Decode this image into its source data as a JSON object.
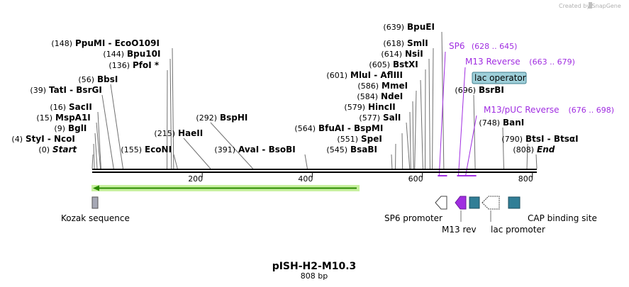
{
  "credit": "Created by SnapGene",
  "map": {
    "title": "pISH-H2-M10.3",
    "length_label": "808 bp",
    "length_bp": 808
  },
  "ruler": {
    "ticks": [
      {
        "bp": 200,
        "label": "200"
      },
      {
        "bp": 400,
        "label": "400"
      },
      {
        "bp": 600,
        "label": "600"
      },
      {
        "bp": 800,
        "label": "800"
      }
    ]
  },
  "sites": [
    {
      "id": "start",
      "pos": "(0)",
      "name": "Start",
      "bp": 0,
      "italic": true
    },
    {
      "id": "styi",
      "pos": "(4)",
      "name": "StyI  - NcoI",
      "bp": 4
    },
    {
      "id": "bgli",
      "pos": "(9)",
      "name": "BglI",
      "bp": 9
    },
    {
      "id": "mspa1i",
      "pos": "(15)",
      "name": "MspA1I",
      "bp": 15
    },
    {
      "id": "sacii",
      "pos": "(16)",
      "name": "SacII",
      "bp": 16
    },
    {
      "id": "tati",
      "pos": "(39)",
      "name": "TatI  - BsrGI",
      "bp": 39
    },
    {
      "id": "bbsi",
      "pos": "(56)",
      "name": "BbsI",
      "bp": 56
    },
    {
      "id": "pfoi",
      "pos": "(136)",
      "name": "PfoI *",
      "bp": 136
    },
    {
      "id": "bpu10i",
      "pos": "(144)",
      "name": "Bpu10I",
      "bp": 144
    },
    {
      "id": "ppumi",
      "pos": "(148)",
      "name": "PpuMI  - EcoO109I",
      "bp": 148
    },
    {
      "id": "econi",
      "pos": "(155)",
      "name": "EcoNI",
      "bp": 155
    },
    {
      "id": "haeii",
      "pos": "(215)",
      "name": "HaeII",
      "bp": 215
    },
    {
      "id": "bsphi",
      "pos": "(292)",
      "name": "BspHI",
      "bp": 292
    },
    {
      "id": "avai",
      "pos": "(391)",
      "name": "AvaI  - BsoBI",
      "bp": 391
    },
    {
      "id": "bsabi",
      "pos": "(545)",
      "name": "BsaBI",
      "bp": 545
    },
    {
      "id": "spei",
      "pos": "(551)",
      "name": "SpeI",
      "bp": 551
    },
    {
      "id": "bfuai",
      "pos": "(564)",
      "name": "BfuAI  - BspMI",
      "bp": 564
    },
    {
      "id": "sali",
      "pos": "(577)",
      "name": "SalI",
      "bp": 577
    },
    {
      "id": "hincii",
      "pos": "(579)",
      "name": "HincII",
      "bp": 579
    },
    {
      "id": "ndei",
      "pos": "(584)",
      "name": "NdeI",
      "bp": 584
    },
    {
      "id": "mmei",
      "pos": "(586)",
      "name": "MmeI",
      "bp": 586
    },
    {
      "id": "mlui",
      "pos": "(601)",
      "name": "MluI  - AflIII",
      "bp": 601
    },
    {
      "id": "bstxi",
      "pos": "(605)",
      "name": "BstXI",
      "bp": 605
    },
    {
      "id": "nsii",
      "pos": "(614)",
      "name": "NsiI",
      "bp": 614
    },
    {
      "id": "smli",
      "pos": "(618)",
      "name": "SmlI",
      "bp": 618
    },
    {
      "id": "bpuei",
      "pos": "(639)",
      "name": "BpuEI",
      "bp": 639
    },
    {
      "id": "bsrbi",
      "pos": "(696)",
      "name": "BsrBI",
      "bp": 696
    },
    {
      "id": "bani",
      "pos": "(748)",
      "name": "BanI",
      "bp": 748
    },
    {
      "id": "btsi",
      "pos": "(790)",
      "name": "BtsI  - BtsαI",
      "bp": 790
    },
    {
      "id": "end",
      "pos": "(808)",
      "name": "End",
      "bp": 808,
      "italic": true
    }
  ],
  "primers": [
    {
      "id": "sp6",
      "name": "SP6",
      "range": "(628 .. 645)",
      "start_bp": 628,
      "end_bp": 645
    },
    {
      "id": "m13rev",
      "name": "M13 Reverse",
      "range": "(663 .. 679)",
      "start_bp": 663,
      "end_bp": 679
    },
    {
      "id": "m13puc",
      "name": "M13/pUC Reverse",
      "range": "(676 .. 698)",
      "start_bp": 676,
      "end_bp": 698
    }
  ],
  "lac_operator": {
    "label": "lac operator",
    "fill": "#9ecfd9",
    "border": "#3f7f8f"
  },
  "features": [
    {
      "id": "kozak",
      "label": "Kozak sequence",
      "bp": 0,
      "fill": "#a6a8b5"
    },
    {
      "id": "sp6-prom",
      "label": "SP6 promoter",
      "bp": 628,
      "fill": "#ffffff"
    },
    {
      "id": "m13-rev",
      "label": "M13 rev",
      "bp": 663,
      "fill": "#a02de1"
    },
    {
      "id": "lac-op",
      "label": "",
      "bp": 683,
      "fill": "#317e96"
    },
    {
      "id": "lac-prom",
      "label": "lac promoter",
      "bp": 699,
      "fill": "#ffffff"
    },
    {
      "id": "cap-site",
      "label": "CAP binding site",
      "bp": 740,
      "fill": "#317e96"
    }
  ],
  "orf": {
    "start_bp": 0,
    "end_bp": 480,
    "color": "#2a8a00",
    "glow": "#c8f0a0"
  },
  "colors": {
    "primer": "#a02de1",
    "backbone": "#000000",
    "line": "#707070"
  }
}
